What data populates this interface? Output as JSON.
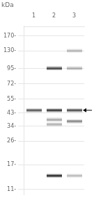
{
  "chart_data": {
    "type": "scatter",
    "title": "kDa",
    "categories": [
      "1",
      "2",
      "3"
    ],
    "points": [
      {
        "x": "1",
        "y": 45,
        "intensity": 0.75
      },
      {
        "x": "2",
        "y": 95,
        "intensity": 0.85
      },
      {
        "x": "2",
        "y": 45,
        "intensity": 0.9
      },
      {
        "x": "2",
        "y": 38,
        "intensity": 0.4
      },
      {
        "x": "2",
        "y": 35,
        "intensity": 0.35
      },
      {
        "x": "2",
        "y": 14,
        "intensity": 0.95
      },
      {
        "x": "3",
        "y": 130,
        "intensity": 0.3
      },
      {
        "x": "3",
        "y": 95,
        "intensity": 0.35
      },
      {
        "x": "3",
        "y": 45,
        "intensity": 0.8
      },
      {
        "x": "3",
        "y": 37,
        "intensity": 0.55
      },
      {
        "x": "3",
        "y": 14,
        "intensity": 0.3
      }
    ],
    "log": "y",
    "ylim": [
      10,
      200
    ],
    "yticks": [
      {
        "value": 170,
        "label": "170-"
      },
      {
        "value": 130,
        "label": "130-"
      },
      {
        "value": 95,
        "label": "95-"
      },
      {
        "value": 72,
        "label": "72-"
      },
      {
        "value": 55,
        "label": "55-"
      },
      {
        "value": 43,
        "label": "43-"
      },
      {
        "value": 34,
        "label": "34-"
      },
      {
        "value": 26,
        "label": "26-"
      },
      {
        "value": 17,
        "label": "17-"
      },
      {
        "value": 11,
        "label": "11-"
      }
    ],
    "grid": true,
    "annotations": [
      {
        "type": "arrow",
        "y": 45
      }
    ]
  }
}
